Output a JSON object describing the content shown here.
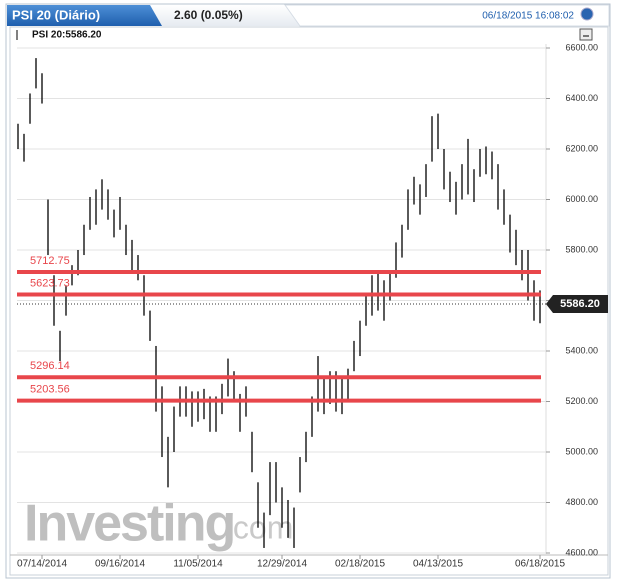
{
  "header": {
    "tab": "PSI 20 (Diário)",
    "change": "2.60 (0.05%)",
    "timestamp": "06/18/2015 16:08:02"
  },
  "chart_data": {
    "type": "ohlc",
    "legend": "PSI 20:5586.20",
    "watermark": "Investing",
    "watermark_suffix": ".com",
    "categories": [
      null,
      null,
      null,
      null,
      "07/14/2014",
      null,
      null,
      null,
      null,
      null,
      null,
      null,
      null,
      null,
      null,
      null,
      null,
      "09/16/2014",
      null,
      null,
      null,
      null,
      null,
      null,
      null,
      null,
      null,
      null,
      null,
      null,
      "11/05/2014",
      null,
      null,
      null,
      null,
      null,
      null,
      null,
      null,
      null,
      null,
      null,
      null,
      null,
      "12/29/2014",
      null,
      null,
      null,
      null,
      null,
      null,
      null,
      null,
      null,
      null,
      null,
      null,
      "02/18/2015",
      null,
      null,
      null,
      null,
      null,
      null,
      null,
      null,
      null,
      null,
      null,
      null,
      "04/13/2015",
      null,
      null,
      null,
      null,
      null,
      null,
      null,
      null,
      null,
      null,
      null,
      null,
      null,
      null,
      null,
      null,
      "06/18/2015"
    ],
    "high": [
      6300,
      6260,
      6420,
      6560,
      6500,
      6000,
      5700,
      5480,
      5660,
      5740,
      5800,
      5900,
      6010,
      6040,
      6080,
      6040,
      5960,
      6010,
      5900,
      5840,
      5780,
      5700,
      5560,
      5420,
      5260,
      5060,
      5180,
      5260,
      5260,
      5240,
      5240,
      5250,
      5220,
      5220,
      5270,
      5370,
      5320,
      5230,
      5260,
      5080,
      4880,
      4760,
      4960,
      4960,
      4860,
      4810,
      4780,
      4980,
      5080,
      5220,
      5380,
      5290,
      5320,
      5320,
      5300,
      5330,
      5440,
      5520,
      5620,
      5700,
      5720,
      5680,
      5720,
      5830,
      5900,
      6040,
      6090,
      6060,
      6140,
      6330,
      6340,
      6200,
      6110,
      6070,
      6140,
      6240,
      6120,
      6200,
      6210,
      6190,
      6140,
      6040,
      5940,
      5880,
      5800,
      5800,
      5680,
      5640
    ],
    "low": [
      6200,
      6150,
      6300,
      6440,
      6380,
      5780,
      5500,
      5360,
      5540,
      5660,
      5700,
      5780,
      5880,
      5900,
      5960,
      5920,
      5850,
      5880,
      5780,
      5720,
      5680,
      5540,
      5440,
      5160,
      4980,
      4860,
      5000,
      5140,
      5140,
      5100,
      5120,
      5130,
      5080,
      5080,
      5150,
      5220,
      5200,
      5080,
      5140,
      4920,
      4700,
      4620,
      4750,
      4800,
      4700,
      4660,
      4620,
      4840,
      4960,
      5060,
      5160,
      5150,
      5190,
      5160,
      5150,
      5200,
      5320,
      5380,
      5500,
      5540,
      5560,
      5520,
      5600,
      5690,
      5770,
      5880,
      5980,
      5940,
      6010,
      6150,
      6200,
      6040,
      5990,
      5940,
      6000,
      6020,
      5990,
      6090,
      6100,
      6080,
      5960,
      5900,
      5790,
      5740,
      5680,
      5600,
      5520,
      5510
    ],
    "color": "#000000",
    "levels": [
      5712.75,
      5623.73,
      5296.14,
      5203.56
    ],
    "level_color": "#e8464b",
    "last": {
      "value": 5586.2,
      "label": "5586.20"
    },
    "ylim": [
      4600,
      6600
    ],
    "yticks": [
      {
        "value": 4600,
        "label": "4600.00"
      },
      {
        "value": 4800,
        "label": "4800.00"
      },
      {
        "value": 5000,
        "label": "5000.00"
      },
      {
        "value": 5200,
        "label": "5200.00"
      },
      {
        "value": 5400,
        "label": "5400.00"
      },
      {
        "value": 5600,
        "label": "5600.00"
      },
      {
        "value": 5800,
        "label": "5800.00"
      },
      {
        "value": 6000,
        "label": "6000.00"
      },
      {
        "value": 6200,
        "label": "6200.00"
      },
      {
        "value": 6400,
        "label": "6400.00"
      },
      {
        "value": 6600,
        "label": "6600.00"
      }
    ],
    "grid": true
  }
}
